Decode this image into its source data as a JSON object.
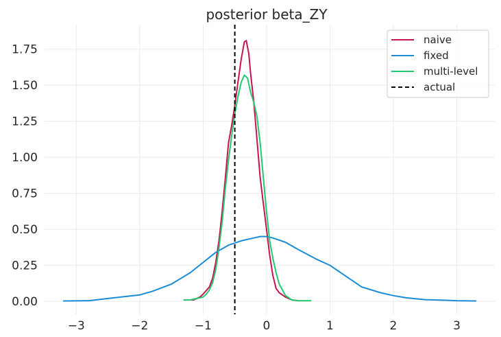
{
  "chart_data": {
    "type": "line",
    "title": "posterior beta_ZY",
    "xlabel": "",
    "ylabel": "",
    "xlim": [
      -3.5,
      3.6
    ],
    "ylim": [
      -0.09,
      1.92
    ],
    "grid": true,
    "legend_position": "top-right",
    "x_ticks": [
      {
        "value": -3,
        "label": "−3"
      },
      {
        "value": -2,
        "label": "−2"
      },
      {
        "value": -1,
        "label": "−1"
      },
      {
        "value": 0,
        "label": "0"
      },
      {
        "value": 1,
        "label": "1"
      },
      {
        "value": 2,
        "label": "2"
      },
      {
        "value": 3,
        "label": "3"
      }
    ],
    "y_ticks": [
      {
        "value": 0.0,
        "label": "0.00"
      },
      {
        "value": 0.25,
        "label": "0.25"
      },
      {
        "value": 0.5,
        "label": "0.50"
      },
      {
        "value": 0.75,
        "label": "0.75"
      },
      {
        "value": 1.0,
        "label": "1.00"
      },
      {
        "value": 1.25,
        "label": "1.25"
      },
      {
        "value": 1.5,
        "label": "1.50"
      },
      {
        "value": 1.75,
        "label": "1.75"
      }
    ],
    "series": [
      {
        "name": "naive",
        "color": "#c7134f",
        "dash": "solid",
        "points": [
          [
            -1.3,
            0.01
          ],
          [
            -1.15,
            0.01
          ],
          [
            -1.05,
            0.03
          ],
          [
            -1.0,
            0.05
          ],
          [
            -0.9,
            0.1
          ],
          [
            -0.85,
            0.16
          ],
          [
            -0.8,
            0.27
          ],
          [
            -0.75,
            0.42
          ],
          [
            -0.7,
            0.62
          ],
          [
            -0.65,
            0.85
          ],
          [
            -0.6,
            1.1
          ],
          [
            -0.55,
            1.22
          ],
          [
            -0.5,
            1.36
          ],
          [
            -0.45,
            1.52
          ],
          [
            -0.4,
            1.68
          ],
          [
            -0.35,
            1.8
          ],
          [
            -0.32,
            1.81
          ],
          [
            -0.28,
            1.72
          ],
          [
            -0.25,
            1.58
          ],
          [
            -0.2,
            1.38
          ],
          [
            -0.15,
            1.12
          ],
          [
            -0.1,
            0.86
          ],
          [
            -0.05,
            0.68
          ],
          [
            0.0,
            0.5
          ],
          [
            0.05,
            0.32
          ],
          [
            0.1,
            0.18
          ],
          [
            0.15,
            0.09
          ],
          [
            0.2,
            0.06
          ],
          [
            0.3,
            0.03
          ],
          [
            0.4,
            0.01
          ],
          [
            0.5,
            0.005
          ]
        ]
      },
      {
        "name": "fixed",
        "color": "#1a8bd6",
        "dash": "solid",
        "points": [
          [
            -3.2,
            0.003
          ],
          [
            -2.8,
            0.005
          ],
          [
            -2.5,
            0.02
          ],
          [
            -2.2,
            0.035
          ],
          [
            -2.0,
            0.045
          ],
          [
            -1.8,
            0.07
          ],
          [
            -1.5,
            0.12
          ],
          [
            -1.2,
            0.2
          ],
          [
            -1.0,
            0.27
          ],
          [
            -0.8,
            0.34
          ],
          [
            -0.6,
            0.39
          ],
          [
            -0.4,
            0.42
          ],
          [
            -0.2,
            0.44
          ],
          [
            -0.1,
            0.45
          ],
          [
            0.0,
            0.45
          ],
          [
            0.1,
            0.44
          ],
          [
            0.3,
            0.41
          ],
          [
            0.5,
            0.36
          ],
          [
            0.8,
            0.29
          ],
          [
            1.0,
            0.25
          ],
          [
            1.2,
            0.19
          ],
          [
            1.5,
            0.1
          ],
          [
            1.8,
            0.06
          ],
          [
            2.0,
            0.04
          ],
          [
            2.2,
            0.025
          ],
          [
            2.5,
            0.012
          ],
          [
            2.8,
            0.008
          ],
          [
            3.0,
            0.005
          ],
          [
            3.3,
            0.003
          ]
        ]
      },
      {
        "name": "multi-level",
        "color": "#21c96f",
        "dash": "solid",
        "points": [
          [
            -1.3,
            0.01
          ],
          [
            -1.2,
            0.01
          ],
          [
            -1.1,
            0.02
          ],
          [
            -1.0,
            0.03
          ],
          [
            -0.95,
            0.05
          ],
          [
            -0.9,
            0.08
          ],
          [
            -0.85,
            0.13
          ],
          [
            -0.8,
            0.22
          ],
          [
            -0.75,
            0.37
          ],
          [
            -0.7,
            0.55
          ],
          [
            -0.65,
            0.78
          ],
          [
            -0.6,
            0.98
          ],
          [
            -0.55,
            1.15
          ],
          [
            -0.5,
            1.3
          ],
          [
            -0.45,
            1.42
          ],
          [
            -0.4,
            1.52
          ],
          [
            -0.35,
            1.57
          ],
          [
            -0.3,
            1.55
          ],
          [
            -0.25,
            1.45
          ],
          [
            -0.2,
            1.38
          ],
          [
            -0.15,
            1.28
          ],
          [
            -0.1,
            1.1
          ],
          [
            -0.05,
            0.86
          ],
          [
            0.0,
            0.62
          ],
          [
            0.05,
            0.42
          ],
          [
            0.1,
            0.3
          ],
          [
            0.15,
            0.2
          ],
          [
            0.2,
            0.12
          ],
          [
            0.3,
            0.04
          ],
          [
            0.4,
            0.01
          ],
          [
            0.5,
            0.005
          ],
          [
            0.6,
            0.005
          ],
          [
            0.7,
            0.005
          ]
        ]
      }
    ],
    "reference_lines": [
      {
        "name": "actual",
        "color": "#000000",
        "dash": "dashed",
        "orientation": "vertical",
        "x": -0.5
      }
    ],
    "legend": [
      {
        "label": "naive",
        "color": "#c7134f",
        "dash": "solid"
      },
      {
        "label": "fixed",
        "color": "#1a8bd6",
        "dash": "solid"
      },
      {
        "label": "multi-level",
        "color": "#21c96f",
        "dash": "solid"
      },
      {
        "label": "actual",
        "color": "#000000",
        "dash": "dashed"
      }
    ]
  }
}
